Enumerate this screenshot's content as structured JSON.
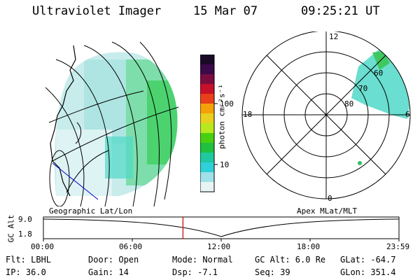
{
  "header": {
    "title": "Ultraviolet Imager",
    "date": "15 Mar 07",
    "time": "09:25:21 UT"
  },
  "colorbar": {
    "unit_label": "photon cm⁻²s⁻¹",
    "ticks": [
      "100",
      "10"
    ],
    "colors": [
      "#1a0a28",
      "#3a0a4a",
      "#7a0d3e",
      "#c8102a",
      "#e8401a",
      "#f5a00a",
      "#e8d020",
      "#b8e820",
      "#48d010",
      "#20c040",
      "#20c8a0",
      "#30d0d8",
      "#a0e0e8",
      "#e8f4f4"
    ]
  },
  "geographic_panel": {
    "label": "Geographic Lat/Lon"
  },
  "polar_panel": {
    "label": "Apex MLat/MLT",
    "mlt_labels": {
      "top": "12",
      "left": "18",
      "right": "6",
      "bottom": "0"
    },
    "lat_labels": [
      "60",
      "70",
      "80"
    ]
  },
  "timeline": {
    "axis_label": "GC Alt",
    "y_ticks": [
      "9.0",
      "1.8"
    ],
    "x_ticks": [
      "00:00",
      "06:00",
      "12:00",
      "18:00",
      "23:59"
    ],
    "current_time_hours": 9.42
  },
  "info": {
    "row1": {
      "flt": "Flt: LBHL",
      "door": "Door: Open",
      "mode": "Mode: Normal",
      "gc_alt": "GC Alt: 6.0 Re",
      "glat": "GLat: -64.7"
    },
    "row2": {
      "ip": "IP: 36.0",
      "gain": "Gain: 14",
      "dsp": "Dsp:   -7.1",
      "seq": "Seq: 39",
      "glon": "GLon: 351.4"
    }
  }
}
